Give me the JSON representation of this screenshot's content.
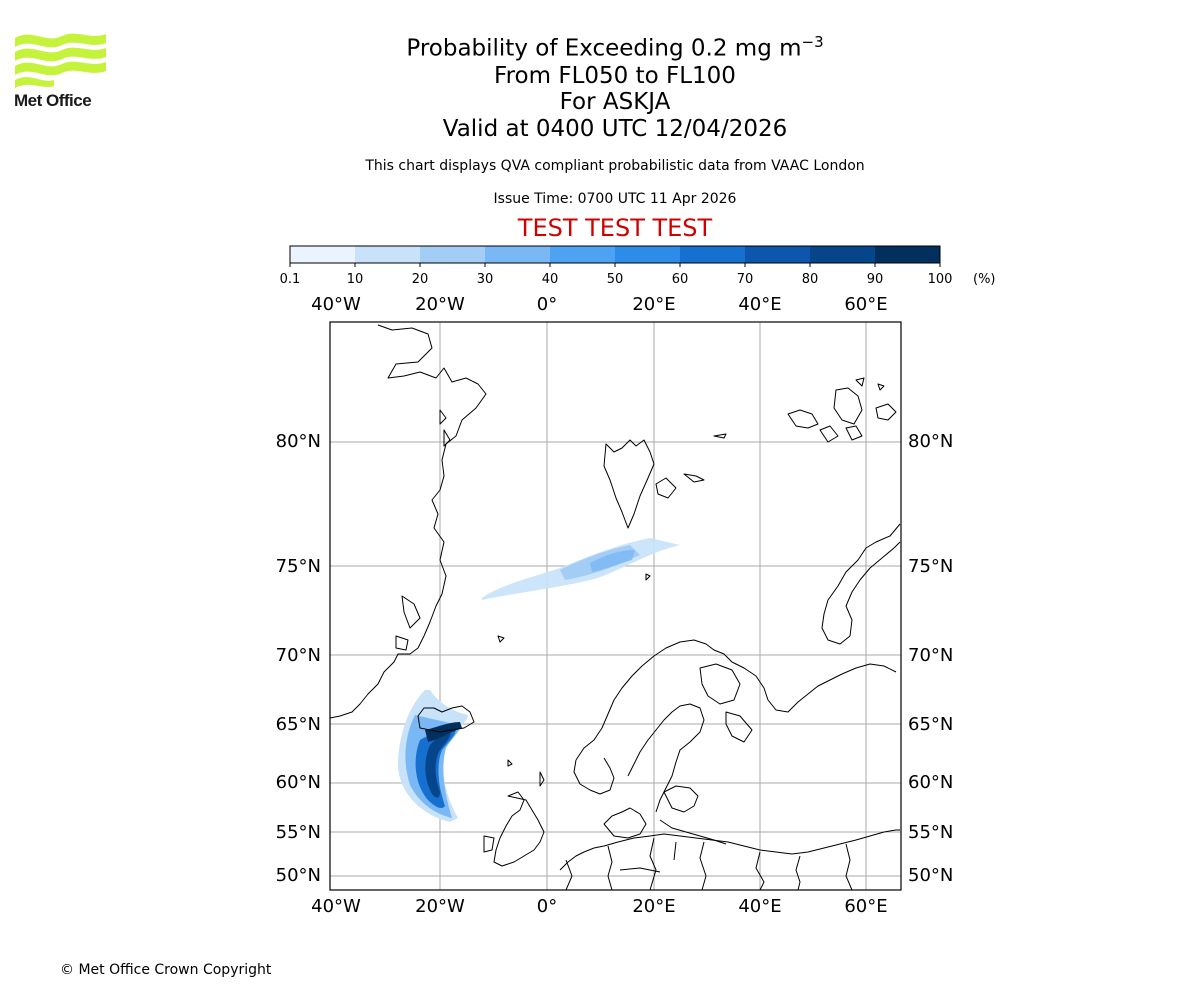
{
  "header": {
    "title_prefix": "Probability of Exceeding 0.2 mg m",
    "title_exponent": "−3",
    "flight_levels": "From FL050 to FL100",
    "volcano": "For ASKJA",
    "valid_time": "Valid at 0400 UTC 12/04/2026",
    "description": "This chart displays QVA compliant probabilistic data from VAAC London",
    "issue_time": "Issue Time: 0700 UTC 11 Apr 2026",
    "test_banner": "TEST TEST TEST"
  },
  "logo": {
    "name": "Met Office",
    "color": "#c5f23a"
  },
  "colorbar": {
    "ticks": [
      "0.1",
      "10",
      "20",
      "30",
      "40",
      "50",
      "60",
      "70",
      "80",
      "90",
      "100"
    ],
    "unit": "(%)",
    "colors": [
      "#eaf4ff",
      "#c8e2fa",
      "#a4cdf5",
      "#7ab8f5",
      "#4ea2f2",
      "#2d8ce8",
      "#1670cf",
      "#0c57ad",
      "#07458b",
      "#02305e"
    ]
  },
  "map": {
    "lon_labels": [
      "40°W",
      "20°W",
      "0°",
      "20°E",
      "40°E",
      "60°E"
    ],
    "lat_labels_right": [
      "80°N",
      "75°N",
      "70°N",
      "65°N",
      "60°N",
      "55°N",
      "50°N"
    ],
    "lat_labels_left": [
      "80°N",
      "75°N",
      "70°N",
      "65°N",
      "60°N",
      "55°N",
      "50°N"
    ],
    "gridline_color": "#aaaaaa"
  },
  "footer": {
    "copyright": "© Met Office Crown Copyright"
  }
}
